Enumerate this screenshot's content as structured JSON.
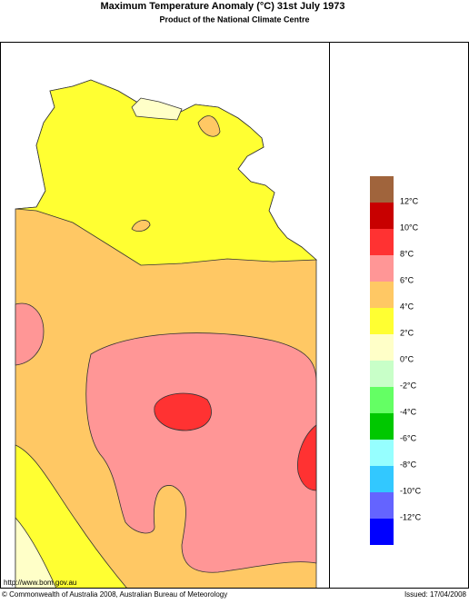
{
  "header": {
    "title": "Maximum Temperature Anomaly (°C)  31st July 1973",
    "subtitle": "Product of the National Climate Centre"
  },
  "legend": {
    "colors": [
      "#a0643c",
      "#c80000",
      "#ff3232",
      "#ff9696",
      "#ffc864",
      "#ffff32",
      "#ffffc8",
      "#c8ffc8",
      "#64ff64",
      "#00c800",
      "#96ffff",
      "#32c8ff",
      "#6464ff",
      "#0000ff"
    ],
    "labels": [
      "12°C",
      "10°C",
      "8°C",
      "6°C",
      "4°C",
      "2°C",
      "0°C",
      "-2°C",
      "-4°C",
      "-6°C",
      "-8°C",
      "-10°C",
      "-12°C"
    ]
  },
  "footer": {
    "url": "http://www.bom.gov.au",
    "copyright": "© Commonwealth of Australia 2008, Australian Bureau of Meteorology",
    "issued": "Issued: 17/04/2008"
  }
}
